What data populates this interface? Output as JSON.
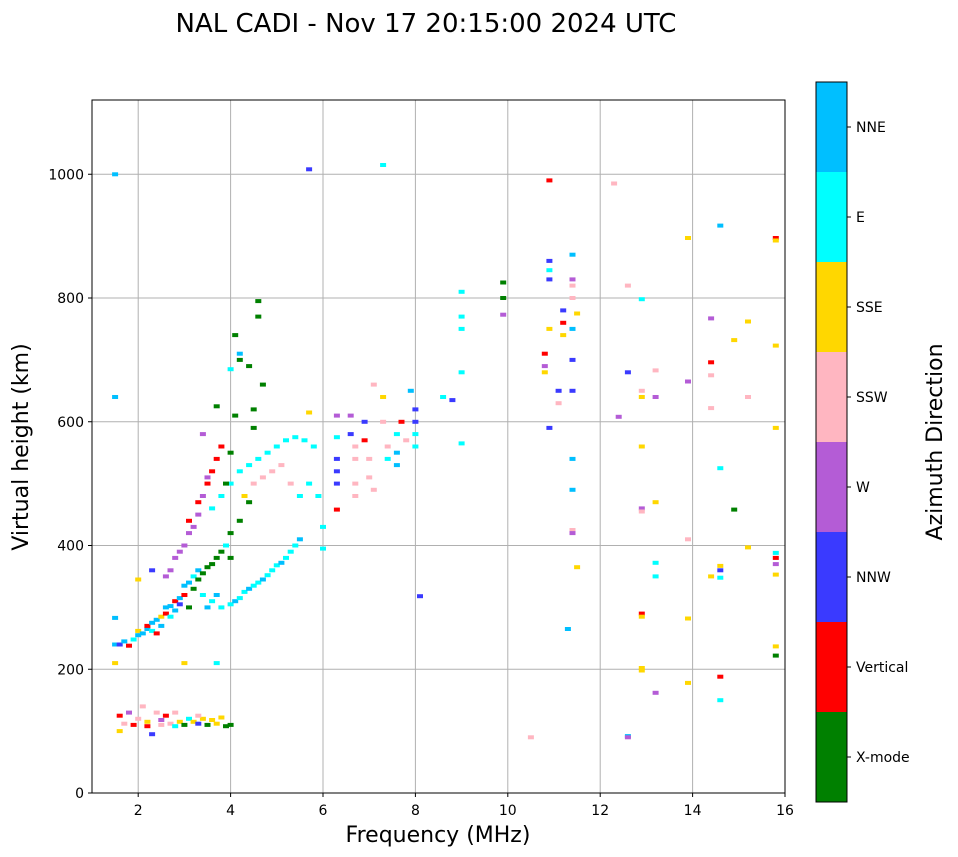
{
  "chart_data": {
    "type": "scatter",
    "title": "NAL CADI - Nov 17 20:15:00 2024 UTC",
    "xlabel": "Frequency (MHz)",
    "ylabel": "Virtual height (km)",
    "xlim": [
      1,
      16
    ],
    "ylim": [
      0,
      1120
    ],
    "xticks": [
      2,
      4,
      6,
      8,
      10,
      12,
      14,
      16
    ],
    "yticks": [
      0,
      200,
      400,
      600,
      800,
      1000
    ],
    "grid": true,
    "colorbar": {
      "label": "Azimuth Direction",
      "categories": [
        "X-mode",
        "Vertical",
        "NNW",
        "W",
        "SSW",
        "SSE",
        "E",
        "NNE"
      ],
      "colors": [
        "#008000",
        "#ff0000",
        "#3a3aff",
        "#b45cd6",
        "#ffb6c1",
        "#ffd700",
        "#00ffff",
        "#00bfff"
      ]
    },
    "points": [
      [
        1.5,
        640,
        7
      ],
      [
        1.5,
        1000,
        7
      ],
      [
        1.5,
        283,
        7
      ],
      [
        1.5,
        210,
        5
      ],
      [
        1.5,
        240,
        7
      ],
      [
        1.6,
        240,
        2
      ],
      [
        1.7,
        245,
        7
      ],
      [
        1.8,
        238,
        1
      ],
      [
        1.9,
        248,
        6
      ],
      [
        2.0,
        255,
        7
      ],
      [
        2.0,
        262,
        5
      ],
      [
        2.1,
        258,
        7
      ],
      [
        2.2,
        265,
        7
      ],
      [
        2.2,
        270,
        1
      ],
      [
        2.3,
        275,
        7
      ],
      [
        2.3,
        262,
        6
      ],
      [
        2.4,
        280,
        7
      ],
      [
        2.4,
        258,
        1
      ],
      [
        2.5,
        285,
        5
      ],
      [
        2.5,
        270,
        7
      ],
      [
        2.6,
        290,
        1
      ],
      [
        2.6,
        300,
        7
      ],
      [
        2.7,
        302,
        7
      ],
      [
        2.7,
        285,
        6
      ],
      [
        2.8,
        310,
        1
      ],
      [
        2.8,
        295,
        7
      ],
      [
        2.9,
        315,
        7
      ],
      [
        2.9,
        305,
        2
      ],
      [
        3.0,
        320,
        1
      ],
      [
        3.0,
        335,
        7
      ],
      [
        3.1,
        340,
        7
      ],
      [
        3.1,
        300,
        0
      ],
      [
        3.2,
        330,
        0
      ],
      [
        3.2,
        350,
        6
      ],
      [
        3.3,
        345,
        0
      ],
      [
        3.3,
        360,
        7
      ],
      [
        3.4,
        355,
        0
      ],
      [
        3.4,
        320,
        6
      ],
      [
        3.5,
        365,
        0
      ],
      [
        3.5,
        300,
        7
      ],
      [
        3.6,
        370,
        0
      ],
      [
        3.6,
        310,
        6
      ],
      [
        3.7,
        380,
        0
      ],
      [
        3.7,
        320,
        7
      ],
      [
        3.8,
        390,
        0
      ],
      [
        3.8,
        300,
        6
      ],
      [
        3.9,
        400,
        6
      ],
      [
        4.0,
        380,
        0
      ],
      [
        4.0,
        305,
        6
      ],
      [
        4.1,
        310,
        7
      ],
      [
        4.2,
        315,
        6
      ],
      [
        4.3,
        325,
        6
      ],
      [
        4.4,
        330,
        7
      ],
      [
        4.5,
        335,
        6
      ],
      [
        4.6,
        340,
        6
      ],
      [
        4.7,
        345,
        7
      ],
      [
        4.8,
        352,
        6
      ],
      [
        4.9,
        360,
        6
      ],
      [
        5.0,
        368,
        6
      ],
      [
        5.1,
        372,
        7
      ],
      [
        5.2,
        380,
        6
      ],
      [
        5.3,
        390,
        6
      ],
      [
        5.4,
        400,
        6
      ],
      [
        5.5,
        410,
        7
      ],
      [
        2.6,
        350,
        3
      ],
      [
        2.7,
        360,
        3
      ],
      [
        2.8,
        380,
        3
      ],
      [
        2.9,
        390,
        3
      ],
      [
        3.0,
        400,
        3
      ],
      [
        3.1,
        420,
        3
      ],
      [
        3.2,
        430,
        3
      ],
      [
        3.3,
        450,
        3
      ],
      [
        3.1,
        440,
        1
      ],
      [
        3.3,
        470,
        1
      ],
      [
        3.5,
        500,
        1
      ],
      [
        3.6,
        520,
        1
      ],
      [
        3.4,
        480,
        3
      ],
      [
        3.5,
        510,
        3
      ],
      [
        3.7,
        540,
        1
      ],
      [
        3.8,
        560,
        1
      ],
      [
        3.4,
        580,
        3
      ],
      [
        3.6,
        460,
        6
      ],
      [
        3.8,
        480,
        6
      ],
      [
        4.0,
        500,
        6
      ],
      [
        4.2,
        520,
        6
      ],
      [
        4.4,
        530,
        6
      ],
      [
        4.6,
        540,
        6
      ],
      [
        4.8,
        550,
        6
      ],
      [
        5.0,
        560,
        6
      ],
      [
        5.2,
        570,
        6
      ],
      [
        5.4,
        575,
        6
      ],
      [
        5.6,
        570,
        6
      ],
      [
        5.8,
        560,
        6
      ],
      [
        4.3,
        480,
        5
      ],
      [
        4.5,
        500,
        4
      ],
      [
        4.7,
        510,
        4
      ],
      [
        4.9,
        520,
        4
      ],
      [
        5.1,
        530,
        4
      ],
      [
        5.3,
        500,
        4
      ],
      [
        5.5,
        480,
        6
      ],
      [
        5.7,
        500,
        6
      ],
      [
        5.9,
        480,
        6
      ],
      [
        6.0,
        430,
        6
      ],
      [
        6.0,
        395,
        6
      ],
      [
        4.0,
        420,
        0
      ],
      [
        4.2,
        440,
        0
      ],
      [
        4.4,
        470,
        0
      ],
      [
        4.5,
        590,
        0
      ],
      [
        4.5,
        620,
        0
      ],
      [
        4.6,
        770,
        0
      ],
      [
        4.6,
        795,
        0
      ],
      [
        4.4,
        690,
        0
      ],
      [
        4.1,
        740,
        0
      ],
      [
        4.2,
        700,
        0
      ],
      [
        4.7,
        660,
        0
      ],
      [
        4.1,
        610,
        0
      ],
      [
        3.7,
        625,
        0
      ],
      [
        4.0,
        550,
        0
      ],
      [
        3.9,
        500,
        0
      ],
      [
        4.2,
        710,
        7
      ],
      [
        4.0,
        685,
        6
      ],
      [
        5.7,
        1008,
        2
      ],
      [
        5.7,
        615,
        5
      ],
      [
        3.0,
        210,
        5
      ],
      [
        3.7,
        210,
        6
      ],
      [
        2.0,
        345,
        5
      ],
      [
        2.3,
        360,
        2
      ],
      [
        6.3,
        610,
        3
      ],
      [
        6.3,
        575,
        6
      ],
      [
        6.3,
        540,
        2
      ],
      [
        6.3,
        520,
        2
      ],
      [
        6.3,
        500,
        2
      ],
      [
        6.3,
        458,
        1
      ],
      [
        6.6,
        610,
        3
      ],
      [
        6.6,
        580,
        2
      ],
      [
        6.7,
        560,
        4
      ],
      [
        6.7,
        540,
        4
      ],
      [
        6.7,
        500,
        4
      ],
      [
        6.7,
        480,
        4
      ],
      [
        6.9,
        600,
        2
      ],
      [
        6.9,
        570,
        1
      ],
      [
        7.0,
        540,
        4
      ],
      [
        7.0,
        510,
        4
      ],
      [
        7.1,
        660,
        4
      ],
      [
        7.1,
        490,
        4
      ],
      [
        7.3,
        640,
        5
      ],
      [
        7.3,
        600,
        4
      ],
      [
        7.4,
        560,
        4
      ],
      [
        7.4,
        540,
        6
      ],
      [
        7.6,
        580,
        6
      ],
      [
        7.6,
        550,
        7
      ],
      [
        7.6,
        530,
        7
      ],
      [
        7.7,
        600,
        1
      ],
      [
        7.8,
        570,
        4
      ],
      [
        7.9,
        650,
        7
      ],
      [
        8.0,
        620,
        2
      ],
      [
        8.0,
        600,
        2
      ],
      [
        8.0,
        580,
        6
      ],
      [
        8.0,
        560,
        6
      ],
      [
        8.1,
        318,
        2
      ],
      [
        7.3,
        1015,
        6
      ],
      [
        8.6,
        640,
        6
      ],
      [
        8.8,
        635,
        2
      ],
      [
        9.0,
        810,
        6
      ],
      [
        9.0,
        770,
        6
      ],
      [
        9.0,
        750,
        6
      ],
      [
        9.0,
        680,
        6
      ],
      [
        9.0,
        565,
        6
      ],
      [
        9.9,
        825,
        0
      ],
      [
        9.9,
        800,
        0
      ],
      [
        9.9,
        773,
        3
      ],
      [
        10.5,
        90,
        4
      ],
      [
        10.8,
        710,
        1
      ],
      [
        10.8,
        690,
        3
      ],
      [
        10.8,
        680,
        5
      ],
      [
        10.9,
        990,
        1
      ],
      [
        10.9,
        860,
        2
      ],
      [
        10.9,
        845,
        6
      ],
      [
        10.9,
        830,
        2
      ],
      [
        10.9,
        750,
        5
      ],
      [
        10.9,
        590,
        2
      ],
      [
        11.1,
        630,
        4
      ],
      [
        11.1,
        650,
        2
      ],
      [
        11.2,
        760,
        1
      ],
      [
        11.2,
        740,
        5
      ],
      [
        11.2,
        780,
        2
      ],
      [
        11.3,
        265,
        7
      ],
      [
        11.4,
        870,
        7
      ],
      [
        11.4,
        830,
        3
      ],
      [
        11.4,
        820,
        4
      ],
      [
        11.4,
        800,
        4
      ],
      [
        11.4,
        750,
        7
      ],
      [
        11.4,
        700,
        2
      ],
      [
        11.4,
        650,
        2
      ],
      [
        11.4,
        540,
        7
      ],
      [
        11.4,
        490,
        7
      ],
      [
        11.4,
        425,
        4
      ],
      [
        11.4,
        420,
        3
      ],
      [
        11.5,
        775,
        5
      ],
      [
        11.5,
        365,
        5
      ],
      [
        12.3,
        985,
        4
      ],
      [
        12.4,
        608,
        3
      ],
      [
        12.6,
        820,
        4
      ],
      [
        12.6,
        680,
        2
      ],
      [
        12.6,
        92,
        7
      ],
      [
        12.6,
        90,
        3
      ],
      [
        12.9,
        798,
        6
      ],
      [
        12.9,
        650,
        4
      ],
      [
        12.9,
        640,
        5
      ],
      [
        12.9,
        560,
        5
      ],
      [
        12.9,
        460,
        3
      ],
      [
        12.9,
        455,
        4
      ],
      [
        12.9,
        290,
        1
      ],
      [
        12.9,
        285,
        5
      ],
      [
        12.9,
        202,
        5
      ],
      [
        12.9,
        198,
        5
      ],
      [
        13.2,
        683,
        4
      ],
      [
        13.2,
        640,
        3
      ],
      [
        13.2,
        470,
        5
      ],
      [
        13.2,
        372,
        6
      ],
      [
        13.2,
        350,
        6
      ],
      [
        13.2,
        162,
        3
      ],
      [
        13.9,
        897,
        5
      ],
      [
        13.9,
        665,
        3
      ],
      [
        13.9,
        410,
        4
      ],
      [
        13.9,
        282,
        5
      ],
      [
        13.9,
        178,
        5
      ],
      [
        14.4,
        767,
        3
      ],
      [
        14.4,
        696,
        1
      ],
      [
        14.4,
        675,
        4
      ],
      [
        14.4,
        622,
        4
      ],
      [
        14.4,
        350,
        5
      ],
      [
        14.6,
        917,
        7
      ],
      [
        14.6,
        525,
        6
      ],
      [
        14.6,
        367,
        5
      ],
      [
        14.6,
        360,
        2
      ],
      [
        14.6,
        348,
        6
      ],
      [
        14.6,
        188,
        1
      ],
      [
        14.6,
        150,
        6
      ],
      [
        14.9,
        732,
        5
      ],
      [
        14.9,
        458,
        0
      ],
      [
        15.2,
        762,
        5
      ],
      [
        15.2,
        640,
        4
      ],
      [
        15.2,
        397,
        5
      ],
      [
        15.8,
        897,
        1
      ],
      [
        15.8,
        893,
        5
      ],
      [
        15.8,
        723,
        5
      ],
      [
        15.8,
        590,
        5
      ],
      [
        15.8,
        388,
        6
      ],
      [
        15.8,
        380,
        1
      ],
      [
        15.8,
        370,
        3
      ],
      [
        15.8,
        353,
        5
      ],
      [
        15.8,
        237,
        5
      ],
      [
        15.8,
        222,
        0
      ],
      [
        1.6,
        125,
        1
      ],
      [
        1.6,
        100,
        5
      ],
      [
        1.7,
        112,
        4
      ],
      [
        1.8,
        130,
        3
      ],
      [
        1.9,
        110,
        1
      ],
      [
        2.0,
        120,
        4
      ],
      [
        2.1,
        140,
        4
      ],
      [
        2.2,
        115,
        5
      ],
      [
        2.3,
        95,
        2
      ],
      [
        2.4,
        130,
        4
      ],
      [
        2.5,
        110,
        4
      ],
      [
        2.6,
        125,
        1
      ],
      [
        2.7,
        112,
        4
      ],
      [
        2.8,
        130,
        4
      ],
      [
        2.9,
        115,
        5
      ],
      [
        3.0,
        110,
        0
      ],
      [
        3.1,
        120,
        6
      ],
      [
        3.2,
        115,
        5
      ],
      [
        3.3,
        112,
        2
      ],
      [
        3.4,
        120,
        5
      ],
      [
        3.5,
        110,
        0
      ],
      [
        3.6,
        118,
        5
      ],
      [
        3.7,
        112,
        5
      ],
      [
        3.8,
        122,
        5
      ],
      [
        3.9,
        108,
        0
      ],
      [
        4.0,
        110,
        0
      ],
      [
        2.2,
        108,
        1
      ],
      [
        2.5,
        118,
        3
      ],
      [
        2.8,
        108,
        6
      ],
      [
        3.3,
        125,
        4
      ]
    ]
  }
}
